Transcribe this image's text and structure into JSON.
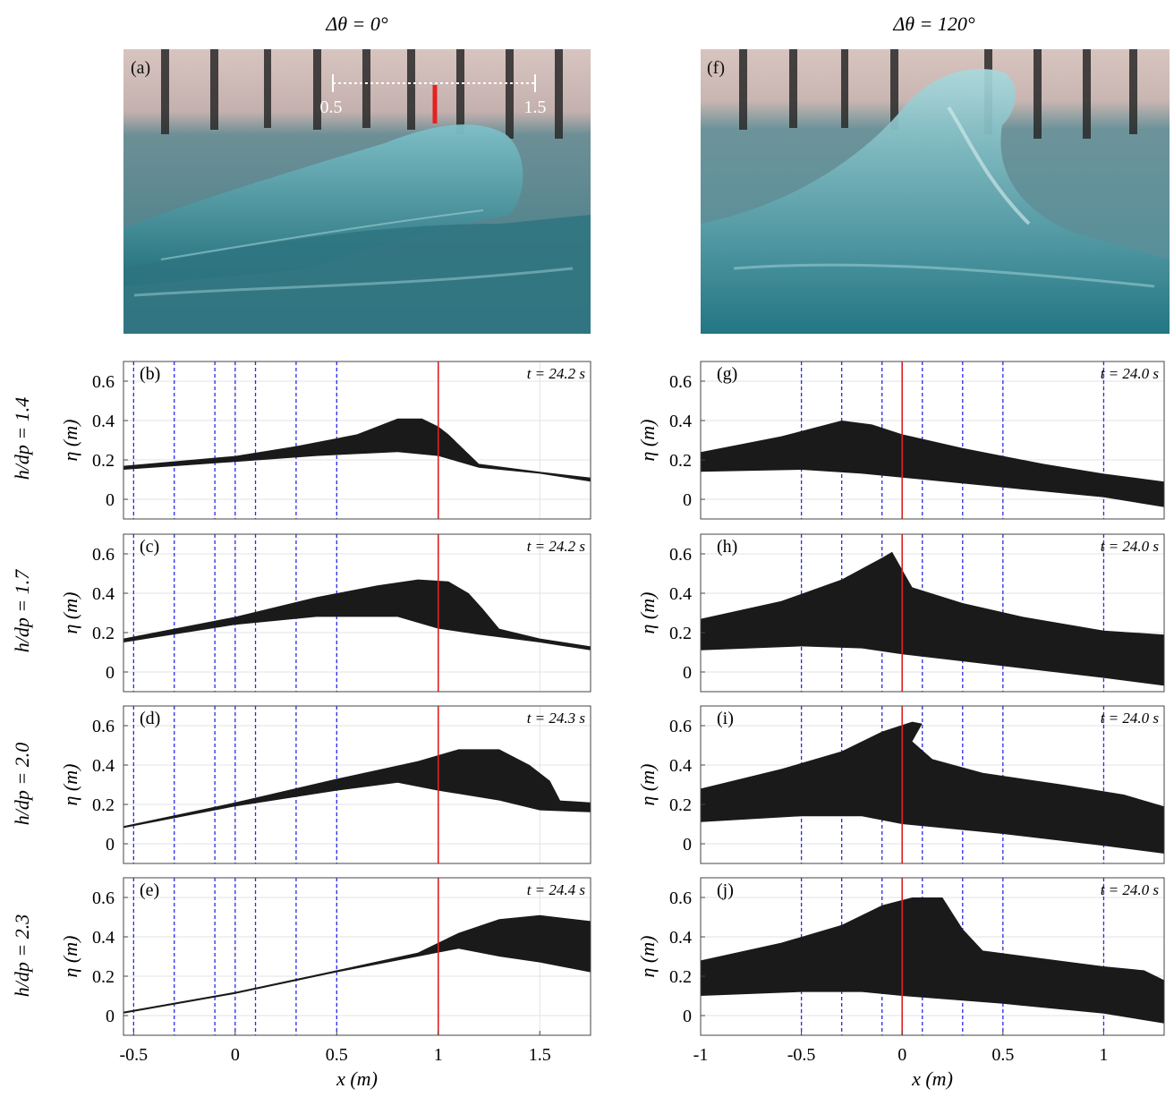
{
  "columns": [
    {
      "title": "Δθ = 0°"
    },
    {
      "title": "Δθ = 120°"
    }
  ],
  "row_labels": [
    "h/dp = 1.4",
    "h/dp = 1.7",
    "h/dp = 2.0",
    "h/dp = 2.3"
  ],
  "photos": [
    {
      "label": "(a)",
      "scale_left": "0.5",
      "scale_right": "1.5"
    },
    {
      "label": "(f)"
    }
  ],
  "colors": {
    "fill": "#1a1a1a",
    "gauge_line": "#2a2ae8",
    "reference_line": "#e02020",
    "grid": "#e3e3e3",
    "photo_water": "#2f7f8a",
    "photo_background": "#c9b8b2"
  },
  "chart_data": [
    {
      "id": "b",
      "type": "area",
      "label": "(b)",
      "time": "t = 24.2 s",
      "ylabel": "η (m)",
      "xlabel": "",
      "xlim": [
        -0.55,
        1.75
      ],
      "ylim": [
        -0.1,
        0.7
      ],
      "yticks": [
        "0",
        "0.2",
        "0.4",
        "0.6"
      ],
      "xticks": [],
      "gauges_x": [
        -0.5,
        -0.3,
        -0.1,
        0,
        0.1,
        0.3,
        0.5
      ],
      "reference_x": 1.0,
      "upper": [
        [
          -0.55,
          0.17
        ],
        [
          0,
          0.22
        ],
        [
          0.3,
          0.27
        ],
        [
          0.6,
          0.33
        ],
        [
          0.8,
          0.41
        ],
        [
          0.92,
          0.41
        ],
        [
          1.0,
          0.37
        ],
        [
          1.05,
          0.33
        ],
        [
          1.2,
          0.18
        ],
        [
          1.5,
          0.14
        ],
        [
          1.75,
          0.11
        ]
      ],
      "lower": [
        [
          -0.55,
          0.15
        ],
        [
          0,
          0.19
        ],
        [
          0.4,
          0.22
        ],
        [
          0.8,
          0.24
        ],
        [
          1.0,
          0.22
        ],
        [
          1.2,
          0.16
        ],
        [
          1.5,
          0.13
        ],
        [
          1.75,
          0.09
        ]
      ]
    },
    {
      "id": "c",
      "type": "area",
      "label": "(c)",
      "time": "t = 24.2 s",
      "ylabel": "η (m)",
      "xlabel": "",
      "xlim": [
        -0.55,
        1.75
      ],
      "ylim": [
        -0.1,
        0.7
      ],
      "yticks": [
        "0",
        "0.2",
        "0.4",
        "0.6"
      ],
      "xticks": [],
      "gauges_x": [
        -0.5,
        -0.3,
        -0.1,
        0,
        0.1,
        0.3,
        0.5
      ],
      "reference_x": 1.0,
      "upper": [
        [
          -0.55,
          0.17
        ],
        [
          0,
          0.28
        ],
        [
          0.4,
          0.38
        ],
        [
          0.7,
          0.44
        ],
        [
          0.9,
          0.47
        ],
        [
          1.05,
          0.46
        ],
        [
          1.15,
          0.4
        ],
        [
          1.22,
          0.32
        ],
        [
          1.3,
          0.22
        ],
        [
          1.5,
          0.17
        ],
        [
          1.75,
          0.13
        ]
      ],
      "lower": [
        [
          -0.55,
          0.15
        ],
        [
          0,
          0.24
        ],
        [
          0.4,
          0.28
        ],
        [
          0.8,
          0.28
        ],
        [
          1.0,
          0.22
        ],
        [
          1.2,
          0.19
        ],
        [
          1.5,
          0.15
        ],
        [
          1.75,
          0.11
        ]
      ]
    },
    {
      "id": "d",
      "type": "area",
      "label": "(d)",
      "time": "t = 24.3 s",
      "ylabel": "η (m)",
      "xlabel": "",
      "xlim": [
        -0.55,
        1.75
      ],
      "ylim": [
        -0.1,
        0.7
      ],
      "yticks": [
        "0",
        "0.2",
        "0.4",
        "0.6"
      ],
      "xticks": [],
      "gauges_x": [
        -0.5,
        -0.3,
        -0.1,
        0,
        0.1,
        0.3,
        0.5
      ],
      "reference_x": 1.0,
      "upper": [
        [
          -0.55,
          0.09
        ],
        [
          0,
          0.21
        ],
        [
          0.5,
          0.33
        ],
        [
          0.9,
          0.42
        ],
        [
          1.1,
          0.48
        ],
        [
          1.3,
          0.48
        ],
        [
          1.45,
          0.4
        ],
        [
          1.55,
          0.32
        ],
        [
          1.6,
          0.22
        ],
        [
          1.75,
          0.21
        ]
      ],
      "lower": [
        [
          -0.55,
          0.08
        ],
        [
          0,
          0.19
        ],
        [
          0.5,
          0.27
        ],
        [
          0.8,
          0.31
        ],
        [
          1.0,
          0.27
        ],
        [
          1.3,
          0.22
        ],
        [
          1.5,
          0.17
        ],
        [
          1.75,
          0.16
        ]
      ]
    },
    {
      "id": "e",
      "type": "area",
      "label": "(e)",
      "time": "t = 24.4 s",
      "ylabel": "η (m)",
      "xlabel": "x (m)",
      "xlim": [
        -0.55,
        1.75
      ],
      "ylim": [
        -0.1,
        0.7
      ],
      "yticks": [
        "0",
        "0.2",
        "0.4",
        "0.6"
      ],
      "xticks": [
        "-0.5",
        "0",
        "0.5",
        "1",
        "1.5"
      ],
      "gauges_x": [
        -0.5,
        -0.3,
        -0.1,
        0,
        0.1,
        0.3,
        0.5
      ],
      "reference_x": 1.0,
      "upper": [
        [
          -0.55,
          0.02
        ],
        [
          0,
          0.12
        ],
        [
          0.5,
          0.23
        ],
        [
          0.9,
          0.32
        ],
        [
          1.1,
          0.42
        ],
        [
          1.3,
          0.49
        ],
        [
          1.5,
          0.51
        ],
        [
          1.75,
          0.48
        ]
      ],
      "lower": [
        [
          -0.55,
          0.01
        ],
        [
          0,
          0.11
        ],
        [
          0.5,
          0.22
        ],
        [
          0.9,
          0.3
        ],
        [
          1.1,
          0.34
        ],
        [
          1.3,
          0.3
        ],
        [
          1.5,
          0.27
        ],
        [
          1.75,
          0.22
        ]
      ]
    },
    {
      "id": "g",
      "type": "area",
      "label": "(g)",
      "time": "t = 24.0 s",
      "ylabel": "η (m)",
      "xlabel": "",
      "xlim": [
        -1,
        1.3
      ],
      "ylim": [
        -0.1,
        0.7
      ],
      "yticks": [
        "0",
        "0.2",
        "0.4",
        "0.6"
      ],
      "xticks": [],
      "gauges_x": [
        -0.5,
        -0.3,
        -0.1,
        0.1,
        0.3,
        0.5,
        1.0
      ],
      "reference_x": 0,
      "upper": [
        [
          -1,
          0.24
        ],
        [
          -0.6,
          0.32
        ],
        [
          -0.3,
          0.4
        ],
        [
          -0.15,
          0.38
        ],
        [
          0,
          0.33
        ],
        [
          0.3,
          0.26
        ],
        [
          0.7,
          0.18
        ],
        [
          1.0,
          0.13
        ],
        [
          1.3,
          0.09
        ]
      ],
      "lower": [
        [
          -1,
          0.14
        ],
        [
          -0.5,
          0.15
        ],
        [
          -0.2,
          0.13
        ],
        [
          0,
          0.11
        ],
        [
          0.5,
          0.06
        ],
        [
          1.0,
          0.01
        ],
        [
          1.3,
          -0.04
        ]
      ]
    },
    {
      "id": "h",
      "type": "area",
      "label": "(h)",
      "time": "t = 24.0 s",
      "ylabel": "η (m)",
      "xlabel": "",
      "xlim": [
        -1,
        1.3
      ],
      "ylim": [
        -0.1,
        0.7
      ],
      "yticks": [
        "0",
        "0.2",
        "0.4",
        "0.6"
      ],
      "xticks": [],
      "gauges_x": [
        -0.5,
        -0.3,
        -0.1,
        0.1,
        0.3,
        0.5,
        1.0
      ],
      "reference_x": 0,
      "upper": [
        [
          -1,
          0.27
        ],
        [
          -0.6,
          0.36
        ],
        [
          -0.3,
          0.47
        ],
        [
          -0.1,
          0.58
        ],
        [
          -0.05,
          0.61
        ],
        [
          0,
          0.52
        ],
        [
          0.05,
          0.43
        ],
        [
          0.3,
          0.35
        ],
        [
          0.6,
          0.28
        ],
        [
          1.0,
          0.21
        ],
        [
          1.3,
          0.19
        ]
      ],
      "lower": [
        [
          -1,
          0.11
        ],
        [
          -0.5,
          0.13
        ],
        [
          -0.2,
          0.12
        ],
        [
          0,
          0.09
        ],
        [
          0.5,
          0.03
        ],
        [
          1.0,
          -0.03
        ],
        [
          1.3,
          -0.07
        ]
      ]
    },
    {
      "id": "i",
      "type": "area",
      "label": "(i)",
      "time": "t = 24.0 s",
      "ylabel": "η (m)",
      "xlabel": "",
      "xlim": [
        -1,
        1.3
      ],
      "ylim": [
        -0.1,
        0.7
      ],
      "yticks": [
        "0",
        "0.2",
        "0.4",
        "0.6"
      ],
      "xticks": [],
      "gauges_x": [
        -0.5,
        -0.3,
        -0.1,
        0.1,
        0.3,
        0.5,
        1.0
      ],
      "reference_x": 0,
      "upper": [
        [
          -1,
          0.28
        ],
        [
          -0.6,
          0.38
        ],
        [
          -0.3,
          0.47
        ],
        [
          -0.1,
          0.57
        ],
        [
          0.05,
          0.62
        ],
        [
          0.1,
          0.61
        ],
        [
          0.05,
          0.52
        ],
        [
          0.15,
          0.43
        ],
        [
          0.4,
          0.36
        ],
        [
          0.8,
          0.3
        ],
        [
          1.1,
          0.25
        ],
        [
          1.3,
          0.19
        ]
      ],
      "lower": [
        [
          -1,
          0.11
        ],
        [
          -0.5,
          0.14
        ],
        [
          -0.2,
          0.14
        ],
        [
          0,
          0.1
        ],
        [
          0.5,
          0.05
        ],
        [
          1.0,
          -0.01
        ],
        [
          1.3,
          -0.05
        ]
      ]
    },
    {
      "id": "j",
      "type": "area",
      "label": "(j)",
      "time": "t = 24.0 s",
      "ylabel": "η (m)",
      "xlabel": "x (m)",
      "xlim": [
        -1,
        1.3
      ],
      "ylim": [
        -0.1,
        0.7
      ],
      "yticks": [
        "0",
        "0.2",
        "0.4",
        "0.6"
      ],
      "xticks": [
        "-1",
        "-0.5",
        "0",
        "0.5",
        "1"
      ],
      "gauges_x": [
        -0.5,
        -0.3,
        -0.1,
        0.1,
        0.3,
        0.5,
        1.0
      ],
      "reference_x": 0,
      "upper": [
        [
          -1,
          0.28
        ],
        [
          -0.6,
          0.37
        ],
        [
          -0.3,
          0.46
        ],
        [
          -0.1,
          0.56
        ],
        [
          0.05,
          0.6
        ],
        [
          0.2,
          0.6
        ],
        [
          0.25,
          0.52
        ],
        [
          0.3,
          0.44
        ],
        [
          0.4,
          0.33
        ],
        [
          0.7,
          0.29
        ],
        [
          1.0,
          0.25
        ],
        [
          1.2,
          0.23
        ],
        [
          1.3,
          0.18
        ]
      ],
      "lower": [
        [
          -1,
          0.1
        ],
        [
          -0.5,
          0.12
        ],
        [
          -0.2,
          0.12
        ],
        [
          0,
          0.1
        ],
        [
          0.5,
          0.06
        ],
        [
          1.0,
          0.01
        ],
        [
          1.3,
          -0.04
        ]
      ]
    }
  ]
}
